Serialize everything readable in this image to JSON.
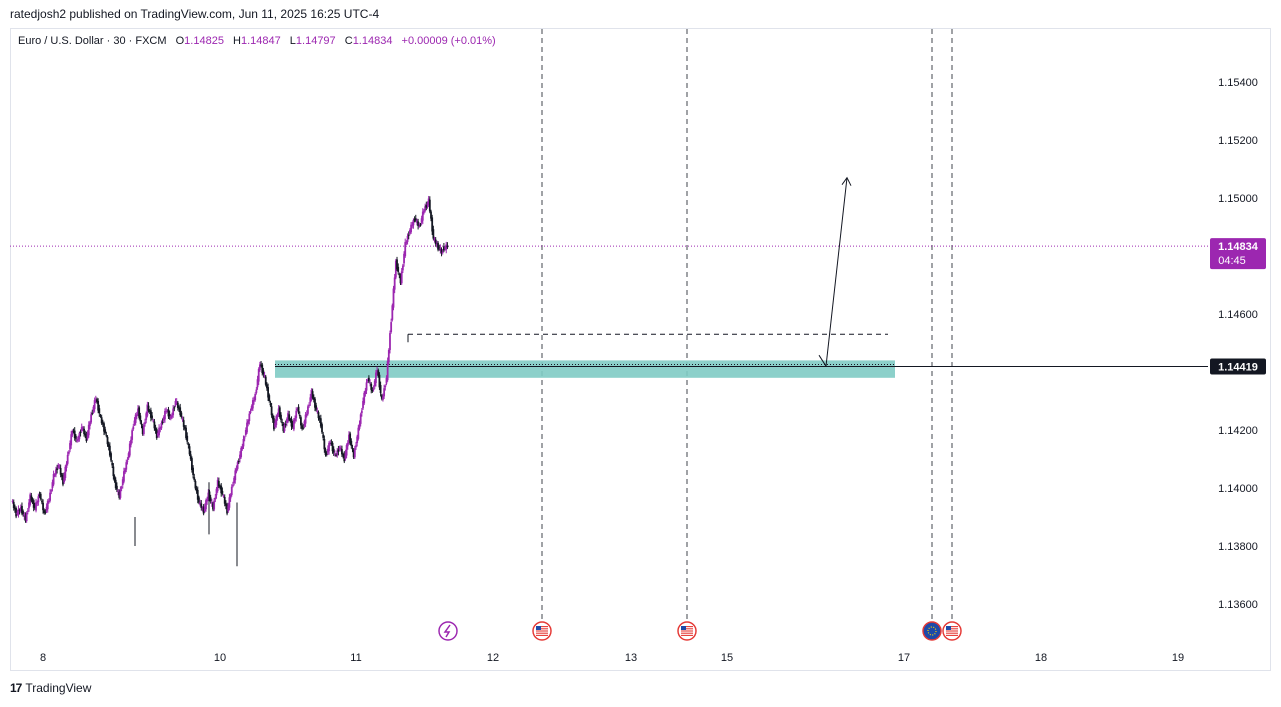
{
  "header": {
    "published": "ratedjosh2 published on TradingView.com, Jun 11, 2025 16:25 UTC-4"
  },
  "legend": {
    "symbol": "Euro / U.S. Dollar · 30 · FXCM",
    "open_label": "O",
    "open": "1.14825",
    "high_label": "H",
    "high": "1.14847",
    "low_label": "L",
    "low": "1.14797",
    "close_label": "C",
    "close": "1.14834",
    "change": "+0.00009 (+0.01%)"
  },
  "price_tag": {
    "price": "1.14834",
    "countdown": "04:45"
  },
  "level_tag": {
    "price": "1.14419"
  },
  "footer": {
    "brand": "TradingView",
    "logo_icon": "tradingview-logo-icon"
  },
  "colors": {
    "up": "#9c27b0",
    "down": "#131722",
    "zone": "#80cbc4",
    "price_line": "#9c27b0",
    "level_bg": "#131722"
  },
  "chart_data": {
    "type": "candlestick",
    "symbol": "EURUSD",
    "timeframe": "30",
    "x_labels": [
      "8",
      "10",
      "11",
      "12",
      "13",
      "15",
      "17",
      "18",
      "19"
    ],
    "y_ticks": [
      "1.15400",
      "1.15200",
      "1.15000",
      "1.14600",
      "1.14200",
      "1.14000",
      "1.13800",
      "1.13600"
    ],
    "ylim": [
      1.1353,
      1.1555
    ],
    "last_price": 1.14834,
    "demand_zone": {
      "low": 1.1438,
      "high": 1.1444
    },
    "marked_level": 1.14419,
    "dashed_level": 1.1453,
    "projection": {
      "from": 1.1442,
      "to": 1.1507
    },
    "event_icons": [
      "flash-icon",
      "us-flag-icon",
      "us-flag-icon",
      "eu-flag-icon",
      "us-flag-icon"
    ],
    "price_path": [
      [
        1.1396,
        1.1391
      ],
      [
        1.1391,
        1.1393
      ],
      [
        1.1393,
        1.1389
      ],
      [
        1.1389,
        1.1397
      ],
      [
        1.1397,
        1.1393
      ],
      [
        1.1393,
        1.1398
      ],
      [
        1.1398,
        1.1391
      ],
      [
        1.1391,
        1.1396
      ],
      [
        1.1396,
        1.1404
      ],
      [
        1.1404,
        1.1408
      ],
      [
        1.1408,
        1.1402
      ],
      [
        1.1402,
        1.1411
      ],
      [
        1.1411,
        1.142
      ],
      [
        1.142,
        1.1416
      ],
      [
        1.1416,
        1.1421
      ],
      [
        1.1421,
        1.1417
      ],
      [
        1.1417,
        1.1425
      ],
      [
        1.1425,
        1.1431
      ],
      [
        1.1431,
        1.1424
      ],
      [
        1.1424,
        1.1419
      ],
      [
        1.1419,
        1.1412
      ],
      [
        1.1412,
        1.1402
      ],
      [
        1.1402,
        1.1397
      ],
      [
        1.1397,
        1.1405
      ],
      [
        1.1405,
        1.1412
      ],
      [
        1.1412,
        1.1422
      ],
      [
        1.1422,
        1.1427
      ],
      [
        1.1427,
        1.1419
      ],
      [
        1.1419,
        1.1428
      ],
      [
        1.1428,
        1.1424
      ],
      [
        1.1424,
        1.1418
      ],
      [
        1.1418,
        1.1422
      ],
      [
        1.1422,
        1.1427
      ],
      [
        1.1427,
        1.1424
      ],
      [
        1.1424,
        1.143
      ],
      [
        1.143,
        1.1426
      ],
      [
        1.1426,
        1.142
      ],
      [
        1.142,
        1.1412
      ],
      [
        1.1412,
        1.1402
      ],
      [
        1.1402,
        1.1395
      ],
      [
        1.1395,
        1.1392
      ],
      [
        1.1392,
        1.1398
      ],
      [
        1.1398,
        1.1393
      ],
      [
        1.1393,
        1.1402
      ],
      [
        1.1402,
        1.1398
      ],
      [
        1.1398,
        1.1392
      ],
      [
        1.1392,
        1.14
      ],
      [
        1.14,
        1.1407
      ],
      [
        1.1407,
        1.1413
      ],
      [
        1.1413,
        1.142
      ],
      [
        1.142,
        1.1427
      ],
      [
        1.1427,
        1.1432
      ],
      [
        1.1432,
        1.1443
      ],
      [
        1.1443,
        1.1438
      ],
      [
        1.1438,
        1.143
      ],
      [
        1.143,
        1.1421
      ],
      [
        1.1421,
        1.1427
      ],
      [
        1.1427,
        1.142
      ],
      [
        1.142,
        1.1425
      ],
      [
        1.1425,
        1.1421
      ],
      [
        1.1421,
        1.1428
      ],
      [
        1.1428,
        1.142
      ],
      [
        1.142,
        1.1426
      ],
      [
        1.1426,
        1.1433
      ],
      [
        1.1433,
        1.1427
      ],
      [
        1.1427,
        1.1422
      ],
      [
        1.1422,
        1.1411
      ],
      [
        1.1411,
        1.1416
      ],
      [
        1.1416,
        1.1411
      ],
      [
        1.1411,
        1.1414
      ],
      [
        1.1414,
        1.141
      ],
      [
        1.141,
        1.1418
      ],
      [
        1.1418,
        1.1411
      ],
      [
        1.1411,
        1.142
      ],
      [
        1.142,
        1.143
      ],
      [
        1.143,
        1.1438
      ],
      [
        1.1438,
        1.1433
      ],
      [
        1.1433,
        1.1441
      ],
      [
        1.1441,
        1.143
      ],
      [
        1.143,
        1.1438
      ],
      [
        1.1438,
        1.1458
      ],
      [
        1.1458,
        1.1478
      ],
      [
        1.1478,
        1.1471
      ],
      [
        1.1471,
        1.1484
      ],
      [
        1.1484,
        1.1489
      ],
      [
        1.1489,
        1.1493
      ],
      [
        1.1493,
        1.149
      ],
      [
        1.149,
        1.1496
      ],
      [
        1.1496,
        1.1499
      ],
      [
        1.1499,
        1.1486
      ],
      [
        1.1486,
        1.1483
      ],
      [
        1.1483,
        1.1481
      ],
      [
        1.14825,
        1.14834
      ]
    ]
  }
}
